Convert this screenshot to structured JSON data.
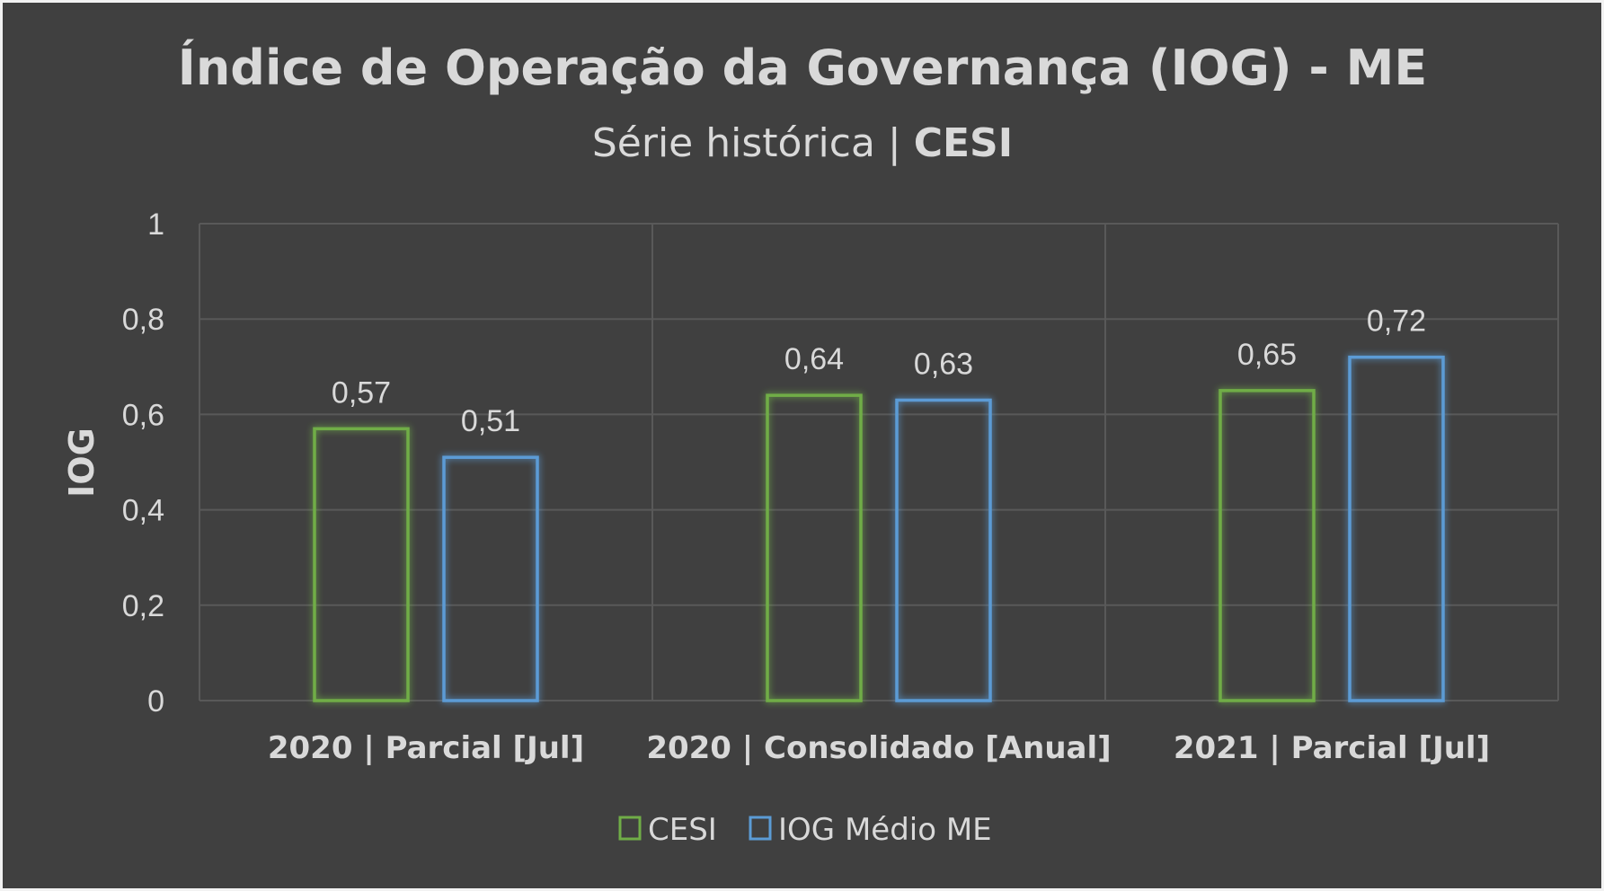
{
  "colors": {
    "background": "#404040",
    "text": "#d9d9d9",
    "grid": "#595959",
    "cesi": "#70ad47",
    "iog_medio": "#5b9bd5"
  },
  "chart_data": {
    "type": "bar",
    "title": "Índice de Operação da Governança (IOG) - ME",
    "subtitle_prefix": "Série histórica | ",
    "subtitle_bold": "CESI",
    "ylabel": "IOG",
    "xlabel": "",
    "ylim": [
      0,
      1
    ],
    "yticks": [
      "0",
      "0,2",
      "0,4",
      "0,6",
      "0,8",
      "1"
    ],
    "categories": [
      "2020 | Parcial [Jul]",
      "2020 | Consolidado [Anual]",
      "2021 | Parcial [Jul]"
    ],
    "series": [
      {
        "name": "CESI",
        "color_key": "cesi",
        "values": [
          0.57,
          0.64,
          0.65
        ],
        "labels": [
          "0,57",
          "0,64",
          "0,65"
        ]
      },
      {
        "name": "IOG Médio ME",
        "color_key": "iog_medio",
        "values": [
          0.51,
          0.63,
          0.72
        ],
        "labels": [
          "0,51",
          "0,63",
          "0,72"
        ]
      }
    ],
    "grid": true,
    "legend": "bottom-center"
  }
}
